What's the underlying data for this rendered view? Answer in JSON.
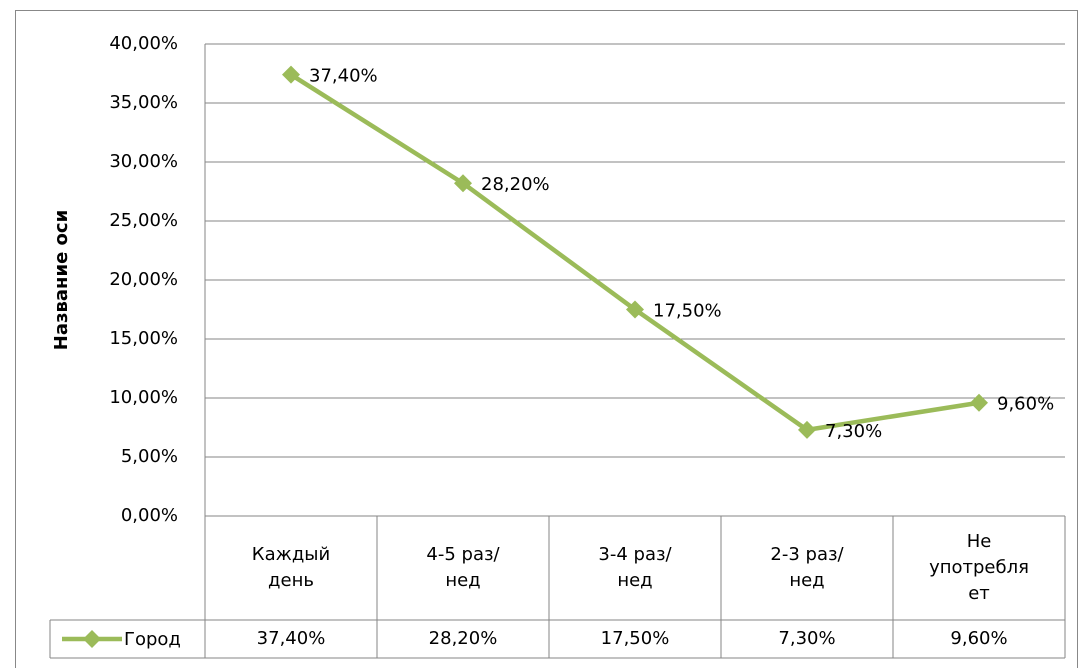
{
  "chart_data": {
    "type": "line",
    "y_label": "Название оси",
    "categories": [
      "Каждый день",
      "4-5 раз/нед",
      "3-4 раз/нед",
      "2-3 раз/нед",
      "Не употребляет"
    ],
    "series": [
      {
        "name": "Город",
        "color": "#9bbb59",
        "values": [
          37.4,
          28.2,
          17.5,
          7.3,
          9.6
        ],
        "value_labels": [
          "37,40%",
          "28,20%",
          "17,50%",
          "7,30%",
          "9,60%"
        ]
      }
    ],
    "ylim": [
      0,
      40
    ],
    "yticks": [
      {
        "value": 0,
        "label": "0,00%"
      },
      {
        "value": 5,
        "label": "5,00%"
      },
      {
        "value": 10,
        "label": "10,00%"
      },
      {
        "value": 15,
        "label": "15,00%"
      },
      {
        "value": 20,
        "label": "20,00%"
      },
      {
        "value": 25,
        "label": "25,00%"
      },
      {
        "value": 30,
        "label": "30,00%"
      },
      {
        "value": 35,
        "label": "35,00%"
      },
      {
        "value": 40,
        "label": "40,00%"
      }
    ],
    "grid": true
  }
}
